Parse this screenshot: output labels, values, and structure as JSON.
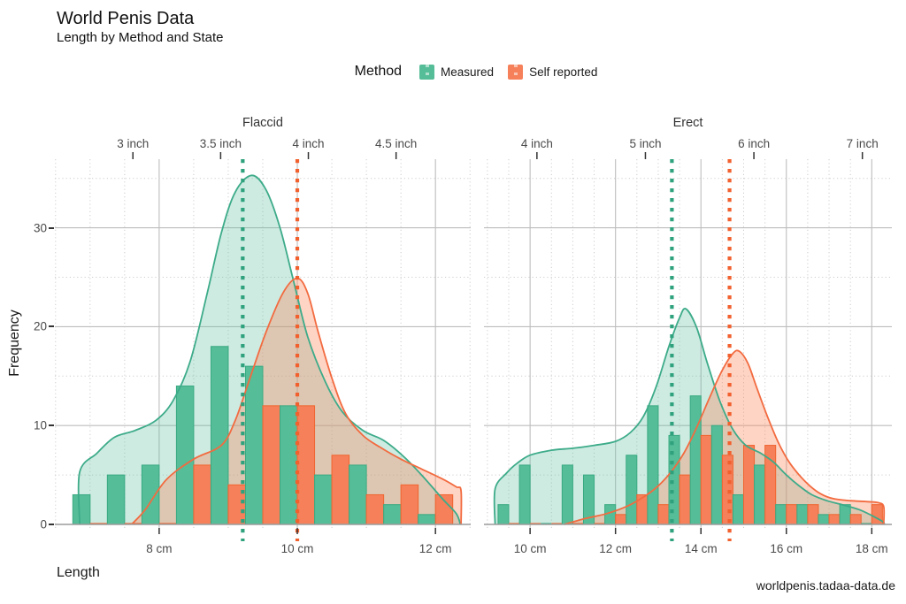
{
  "header": {
    "title": "World Penis Data",
    "subtitle": "Length by Method and State"
  },
  "legend": {
    "title": "Method",
    "items": [
      {
        "label": "Measured",
        "color": "#55BD98"
      },
      {
        "label": "Self reported",
        "color": "#F5805A"
      }
    ]
  },
  "axes": {
    "y_title": "Frequency",
    "x_title": "Length",
    "y_ticks": [
      "0",
      "10",
      "20",
      "30"
    ]
  },
  "footer": {
    "source": "worldpenis.tadaa-data.de"
  },
  "chart_data": {
    "type": "bar",
    "subtype": "dodged histogram with density overlay, faceted",
    "series_names": [
      "Measured",
      "Self reported"
    ],
    "colors": {
      "measured_bar": "#55BD98",
      "measured_bar_stroke": "#3AAA82",
      "self_bar": "#F5805A",
      "self_bar_stroke": "#F0642F",
      "measured_line": "#3DAB89",
      "self_line": "#F26B40",
      "measured_fill": "#66C2A5",
      "self_fill": "#FC885F",
      "mean_measured": "#2FA27D",
      "mean_self": "#F2602E"
    },
    "ylabel": "Frequency",
    "xlabel": "Length",
    "ylim": [
      0,
      36.9
    ],
    "y_major": [
      0,
      10,
      20,
      30
    ],
    "y_minor": [
      5,
      15,
      25,
      35
    ],
    "grid": true,
    "legend_position": "top",
    "facets": [
      {
        "label": "Flaccid",
        "cm_range": [
          6.49,
          12.51
        ],
        "bin_width": 0.5,
        "bottom_ticks": [
          {
            "label": "8 cm",
            "cm": 8
          },
          {
            "label": "10 cm",
            "cm": 10
          },
          {
            "label": "12 cm",
            "cm": 12
          }
        ],
        "top_ticks": [
          {
            "label": "3 inch",
            "cm": 7.62
          },
          {
            "label": "3.5 inch",
            "cm": 8.89
          },
          {
            "label": "4 inch",
            "cm": 10.16
          },
          {
            "label": "4.5 inch",
            "cm": 11.43
          }
        ],
        "bin_centers": [
          7.0,
          7.5,
          8.0,
          8.5,
          9.0,
          9.5,
          10.0,
          10.5,
          11.0,
          11.5,
          12.0
        ],
        "measured": [
          3,
          5,
          6,
          14,
          18,
          16,
          12,
          5,
          6,
          2,
          1
        ],
        "self_reported": [
          0,
          0,
          0,
          6,
          4,
          12,
          12,
          7,
          3,
          4,
          3
        ],
        "mean_measured_cm": 9.21,
        "mean_self_cm": 10.0,
        "density_measured": [
          [
            6.85,
            0
          ],
          [
            6.85,
            5.3
          ],
          [
            7.1,
            7.2
          ],
          [
            7.35,
            8.8
          ],
          [
            7.65,
            9.5
          ],
          [
            7.95,
            10.5
          ],
          [
            8.2,
            12.5
          ],
          [
            8.45,
            16.5
          ],
          [
            8.7,
            23.5
          ],
          [
            8.9,
            29.5
          ],
          [
            9.1,
            33.6
          ],
          [
            9.34,
            35.3
          ],
          [
            9.55,
            33.8
          ],
          [
            9.75,
            30.0
          ],
          [
            9.95,
            24.5
          ],
          [
            10.15,
            19.0
          ],
          [
            10.4,
            14.5
          ],
          [
            10.65,
            11.4
          ],
          [
            10.95,
            9.5
          ],
          [
            11.25,
            8.5
          ],
          [
            11.55,
            6.8
          ],
          [
            11.85,
            4.6
          ],
          [
            12.1,
            2.6
          ],
          [
            12.3,
            1.1
          ],
          [
            12.36,
            0
          ]
        ],
        "density_self": [
          [
            7.6,
            0
          ],
          [
            7.8,
            1.5
          ],
          [
            8.1,
            4.5
          ],
          [
            8.5,
            6.6
          ],
          [
            8.9,
            8.0
          ],
          [
            9.1,
            10.5
          ],
          [
            9.3,
            14.5
          ],
          [
            9.55,
            19.5
          ],
          [
            9.8,
            23.5
          ],
          [
            10.0,
            24.9
          ],
          [
            10.15,
            23.4
          ],
          [
            10.3,
            19.5
          ],
          [
            10.5,
            14.8
          ],
          [
            10.7,
            11.2
          ],
          [
            10.95,
            9.0
          ],
          [
            11.2,
            7.8
          ],
          [
            11.5,
            6.6
          ],
          [
            11.8,
            5.6
          ],
          [
            12.1,
            4.6
          ],
          [
            12.3,
            3.8
          ],
          [
            12.37,
            3.4
          ],
          [
            12.37,
            0
          ]
        ]
      },
      {
        "label": "Erect",
        "cm_range": [
          8.92,
          18.47
        ],
        "bin_width": 0.5,
        "bottom_ticks": [
          {
            "label": "10 cm",
            "cm": 10
          },
          {
            "label": "12 cm",
            "cm": 12
          },
          {
            "label": "14 cm",
            "cm": 14
          },
          {
            "label": "16 cm",
            "cm": 16
          },
          {
            "label": "18 cm",
            "cm": 18
          }
        ],
        "top_ticks": [
          {
            "label": "4 inch",
            "cm": 10.16
          },
          {
            "label": "5 inch",
            "cm": 12.7
          },
          {
            "label": "6 inch",
            "cm": 15.24
          },
          {
            "label": "7 inch",
            "cm": 17.78
          }
        ],
        "bin_centers": [
          9.5,
          10.0,
          10.5,
          11.0,
          11.5,
          12.0,
          12.5,
          13.0,
          13.5,
          14.0,
          14.5,
          15.0,
          15.5,
          16.0,
          16.5,
          17.0,
          17.5,
          18.0
        ],
        "measured": [
          2,
          6,
          0,
          6,
          5,
          2,
          7,
          12,
          9,
          13,
          10,
          3,
          6,
          2,
          2,
          1,
          2,
          0
        ],
        "self_reported": [
          0,
          0,
          0,
          0,
          0,
          1,
          3,
          2,
          5,
          9,
          7,
          8,
          8,
          2,
          2,
          1,
          1,
          2
        ],
        "mean_measured_cm": 13.32,
        "mean_self_cm": 14.67,
        "density_measured": [
          [
            9.18,
            0
          ],
          [
            9.18,
            3.6
          ],
          [
            9.45,
            5.2
          ],
          [
            9.7,
            6.2
          ],
          [
            10.0,
            7.0
          ],
          [
            10.5,
            7.5
          ],
          [
            11.0,
            7.7
          ],
          [
            11.5,
            8.0
          ],
          [
            12.0,
            8.4
          ],
          [
            12.35,
            9.3
          ],
          [
            12.65,
            10.9
          ],
          [
            12.95,
            13.9
          ],
          [
            13.25,
            18.0
          ],
          [
            13.5,
            20.9
          ],
          [
            13.65,
            21.8
          ],
          [
            13.9,
            19.9
          ],
          [
            14.15,
            16.3
          ],
          [
            14.45,
            12.4
          ],
          [
            14.75,
            9.6
          ],
          [
            15.05,
            8.0
          ],
          [
            15.4,
            7.2
          ],
          [
            15.7,
            6.3
          ],
          [
            16.0,
            5.0
          ],
          [
            16.3,
            3.9
          ],
          [
            16.6,
            3.0
          ],
          [
            16.95,
            2.4
          ],
          [
            17.3,
            2.0
          ],
          [
            17.7,
            1.5
          ],
          [
            18.0,
            0.9
          ],
          [
            18.25,
            0.3
          ],
          [
            18.3,
            0
          ]
        ],
        "density_self": [
          [
            10.8,
            0
          ],
          [
            11.3,
            0.6
          ],
          [
            11.8,
            1.1
          ],
          [
            12.3,
            1.9
          ],
          [
            12.7,
            2.9
          ],
          [
            13.0,
            3.9
          ],
          [
            13.3,
            5.3
          ],
          [
            13.6,
            7.2
          ],
          [
            13.9,
            9.8
          ],
          [
            14.2,
            12.8
          ],
          [
            14.5,
            15.6
          ],
          [
            14.75,
            17.3
          ],
          [
            14.9,
            17.5
          ],
          [
            15.1,
            16.3
          ],
          [
            15.3,
            13.9
          ],
          [
            15.55,
            11.0
          ],
          [
            15.8,
            8.4
          ],
          [
            16.05,
            6.4
          ],
          [
            16.3,
            5.0
          ],
          [
            16.55,
            3.9
          ],
          [
            16.8,
            3.1
          ],
          [
            17.1,
            2.6
          ],
          [
            17.5,
            2.4
          ],
          [
            17.9,
            2.3
          ],
          [
            18.15,
            2.2
          ],
          [
            18.28,
            1.8
          ],
          [
            18.28,
            0
          ]
        ]
      }
    ]
  }
}
